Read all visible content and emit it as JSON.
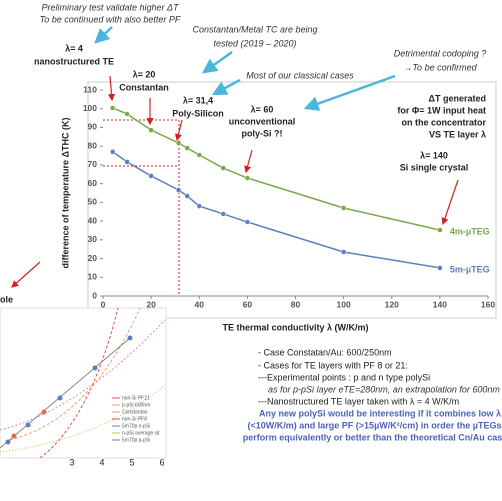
{
  "top_notes": {
    "preliminary": [
      "Preliminary test validate higher ΔT",
      "To be continued with also better PF"
    ],
    "constantan": [
      "Constantan/Metal TC are being",
      "tested (2019 – 2020)"
    ],
    "classical": "Most of our classical cases",
    "codoping": [
      "Detrimental codoping ?",
      "→To be confirmed"
    ]
  },
  "chart_data": {
    "type": "line",
    "y_label": "difference of temperature ΔTHC (K)",
    "x_label": "TE thermal conductivity λ (W/K/m)",
    "x": [
      4,
      10,
      20,
      31.4,
      35,
      40,
      50,
      60,
      100,
      140
    ],
    "series": [
      {
        "name": "4m-µTEG",
        "color": "#79a84b",
        "values": [
          100.4,
          97.2,
          88.6,
          81.7,
          79,
          75.3,
          68.3,
          63,
          47,
          35.2
        ]
      },
      {
        "name": "5m-µTEG",
        "color": "#5b7fc4",
        "values": [
          77,
          71.6,
          64.1,
          56.6,
          53.4,
          48,
          43.8,
          39.5,
          23.5,
          15
        ]
      }
    ],
    "xlim": [
      0,
      160
    ],
    "xticks": [
      0,
      20,
      40,
      60,
      80,
      100,
      120,
      140,
      160
    ],
    "ylim": [
      0,
      110
    ],
    "yticks": [
      0,
      10,
      20,
      30,
      40,
      50,
      60,
      70,
      80,
      90,
      100,
      110
    ],
    "grid": false,
    "annotations": {
      "l4": [
        "λ= 4",
        "nanostructured TE"
      ],
      "l20": [
        "λ= 20",
        "Constantan"
      ],
      "l31": [
        "λ= 31,4",
        "Poly-Silicon"
      ],
      "l60": [
        "λ= 60",
        "unconventional",
        "poly-Si  ?!"
      ],
      "l140": [
        "λ= 140",
        "Si single crystal"
      ],
      "box": [
        "ΔT generated",
        "for Φ= 1W input heat",
        "on the concentrator",
        "VS  TE layer λ"
      ]
    }
  },
  "inset": {
    "cut_label": "ole",
    "xticks": [
      "3",
      "4",
      "5",
      "6"
    ],
    "legend": [
      "non-Si PF21",
      "p-pSi 600nm",
      "Constantan",
      "non-Si PF8",
      "5m70p n-pSi",
      "n-pSi average sit",
      "5m70p p-pSi"
    ]
  },
  "notes": {
    "lines": [
      "- Case Constatan/Au:  600/250nm",
      "- Cases for TE layers with PF 8 or 21:",
      "---Experimental points : p and n type polySi",
      "as for p-pSi  layer eTE=280nm, an extrapolation for 600nm is calculated",
      "---Nanostructured TE layer taken with λ = 4 W/K/m"
    ],
    "highlight": [
      "Any new polySi would be interesting if it combines low λ",
      "(<10W/K/m) and large PF (>15µW/K²/cm) in order the µTEGs to",
      "perform equivalently or better than the theoretical Cn/Au case ..."
    ]
  }
}
